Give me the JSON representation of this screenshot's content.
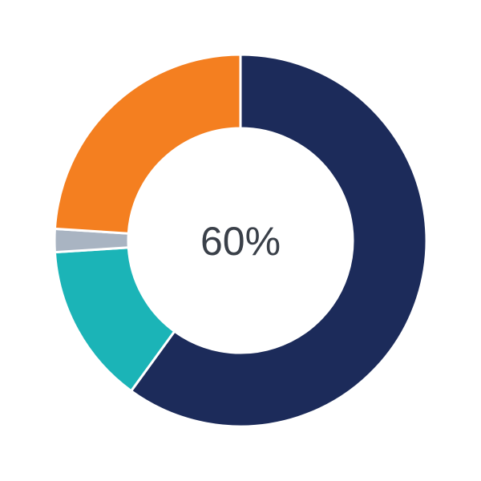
{
  "chart_data": {
    "type": "pie",
    "variant": "donut",
    "center_label": "60%",
    "start": "top",
    "direction": "clockwise",
    "slices": [
      {
        "value": 60,
        "color": "#1c2b5a"
      },
      {
        "value": 14,
        "color": "#1bb4b7"
      },
      {
        "value": 2,
        "color": "#a9b4c2"
      },
      {
        "value": 24,
        "color": "#f47f20"
      }
    ]
  }
}
